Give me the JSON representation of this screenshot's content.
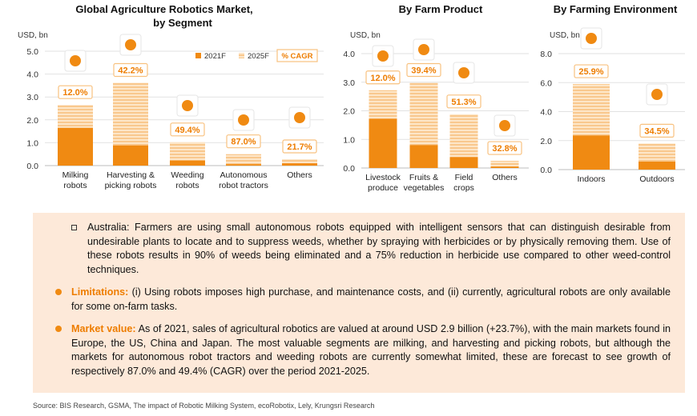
{
  "chart_data": [
    {
      "type": "bar",
      "title": "Global Agriculture Robotics Market, by Segment",
      "ylabel": "USD, bn",
      "ylim": [
        0,
        5
      ],
      "yticks": [
        "0.0",
        "1.0",
        "2.0",
        "3.0",
        "4.0",
        "5.0"
      ],
      "categories": [
        "Milking robots",
        "Harvesting & picking robots",
        "Weeding robots",
        "Autonomous robot tractors",
        "Others"
      ],
      "series": [
        {
          "name": "2021F",
          "values": [
            1.65,
            0.88,
            0.22,
            0.06,
            0.1
          ]
        },
        {
          "name": "2025F",
          "values": [
            2.65,
            3.62,
            1.02,
            0.5,
            0.28
          ]
        }
      ],
      "cagr_legend": "% CAGR",
      "cagr": [
        "12.0%",
        "42.2%",
        "49.4%",
        "87.0%",
        "21.7%"
      ],
      "icons": [
        "milking-robot-icon",
        "harvester-icon",
        "weeding-robot-icon",
        "tractor-icon",
        "drone-icon"
      ]
    },
    {
      "type": "bar",
      "title": "By Farm Product",
      "ylabel": "USD, bn",
      "ylim": [
        0,
        4
      ],
      "yticks": [
        "0.0",
        "1.0",
        "2.0",
        "3.0",
        "4.0"
      ],
      "categories": [
        "Livestock produce",
        "Fruits & vegetables",
        "Field crops",
        "Others"
      ],
      "series": [
        {
          "name": "2021F",
          "values": [
            1.72,
            0.8,
            0.38,
            0.05
          ]
        },
        {
          "name": "2025F",
          "values": [
            2.72,
            2.98,
            1.88,
            0.25
          ]
        }
      ],
      "cagr": [
        "12.0%",
        "39.4%",
        "51.3%",
        "32.8%"
      ],
      "icons": [
        "goose-icon",
        "strawberry-icon",
        "wheat-icon",
        "flower-icon"
      ]
    },
    {
      "type": "bar",
      "title": "By Farming Environment",
      "ylabel": "USD, bn",
      "ylim": [
        0,
        8
      ],
      "yticks": [
        "0.0",
        "2.0",
        "4.0",
        "6.0",
        "8.0"
      ],
      "categories": [
        "Indoors",
        "Outdoors"
      ],
      "series": [
        {
          "name": "2021F",
          "values": [
            2.35,
            0.55
          ]
        },
        {
          "name": "2025F",
          "values": [
            5.9,
            1.8
          ]
        }
      ],
      "cagr": [
        "25.9%",
        "34.5%"
      ],
      "icons": [
        "greenhouse-icon",
        "field-drone-icon"
      ]
    }
  ],
  "colors": {
    "dark_orange": "#f08a12",
    "light_orange": "#f8c17f",
    "stripe": "#fde3c2",
    "accent": "#ee7d00",
    "box_bg": "#fde9d9"
  },
  "info": {
    "p1": "Australia: Farmers are using small autonomous robots equipped with intelligent sensors that can distinguish desirable from undesirable plants to locate and to suppress weeds, whether by spraying with herbicides or by physically removing them. Use of these robots results in 90% of weeds being eliminated and a 75% reduction in herbicide use compared to other weed-control techniques.",
    "p2_label": "Limitations:",
    "p2": "(i) Using robots imposes high purchase, and maintenance costs, and (ii) currently, agricultural robots are only available for some on-farm tasks.",
    "p3_label": "Market value:",
    "p3": "As of 2021, sales of agricultural robotics are valued at around USD 2.9 billion (+23.7%), with the main markets found in Europe, the US, China and Japan. The most valuable segments are milking, and harvesting and picking robots, but although the markets for autonomous robot tractors and weeding robots are currently somewhat limited, these are forecast to see growth of respectively 87.0% and 49.4% (CAGR) over the period 2021-2025."
  },
  "source": "Source: BIS Research, GSMA, The impact of Robotic Milking System, ecoRobotix, Lely, Krungsri Research"
}
